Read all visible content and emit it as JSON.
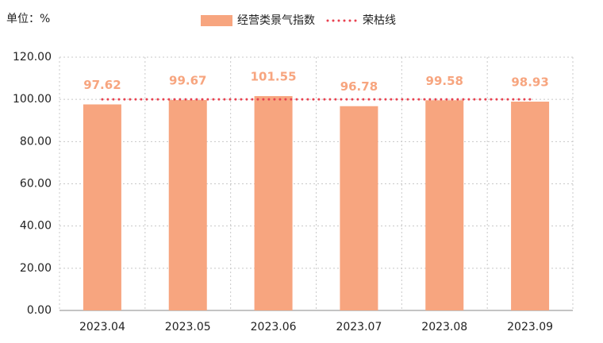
{
  "chart_data": {
    "type": "bar",
    "unit_label": "单位：%",
    "categories": [
      "2023.04",
      "2023.05",
      "2023.06",
      "2023.07",
      "2023.08",
      "2023.09"
    ],
    "series": [
      {
        "name": "经营类景气指数",
        "type": "bar",
        "color": "#f7a57f",
        "values": [
          97.62,
          99.67,
          101.55,
          96.78,
          99.58,
          98.93
        ]
      },
      {
        "name": "荣枯线",
        "type": "line",
        "color": "#e8404f",
        "values": [
          100,
          100,
          100,
          100,
          100,
          100
        ]
      }
    ],
    "ylim": [
      0,
      120
    ],
    "yticks": [
      {
        "value": 0,
        "label": "0.00"
      },
      {
        "value": 20,
        "label": "20.00"
      },
      {
        "value": 40,
        "label": "40.00"
      },
      {
        "value": 60,
        "label": "60.00"
      },
      {
        "value": 80,
        "label": "80.00"
      },
      {
        "value": 100,
        "label": "100.00"
      },
      {
        "value": 120,
        "label": "120.00"
      }
    ],
    "grid": true
  }
}
